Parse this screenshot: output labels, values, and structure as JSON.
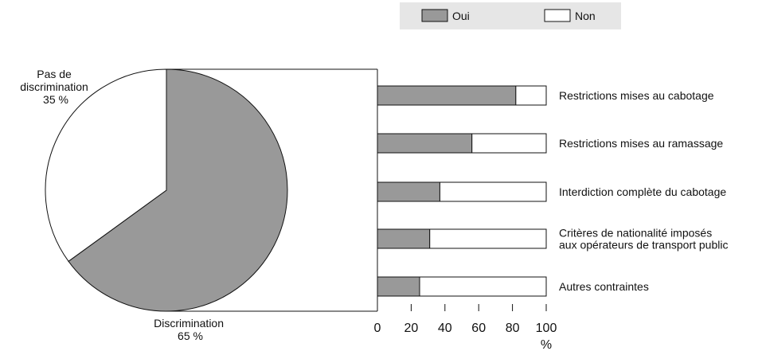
{
  "colors": {
    "oui": "#999999",
    "non": "#ffffff",
    "stroke": "#111111",
    "legend_bg": "#e6e6e6"
  },
  "legend": {
    "items": [
      "Oui",
      "Non"
    ]
  },
  "pie": {
    "slices": [
      {
        "label_lines": [
          "Discrimination",
          "65 %"
        ],
        "value": 65
      },
      {
        "label_lines": [
          "Pas de",
          "discrimination",
          "35 %"
        ],
        "value": 35
      }
    ]
  },
  "chart_data": [
    {
      "type": "pie",
      "categories": [
        "Discrimination",
        "Pas de discrimination"
      ],
      "values": [
        65,
        35
      ]
    },
    {
      "type": "bar",
      "orientation": "horizontal",
      "stacked": true,
      "categories": [
        [
          "Restrictions mises au cabotage"
        ],
        [
          "Restrictions mises au ramassage"
        ],
        [
          "Interdiction complète du cabotage"
        ],
        [
          "Critères de nationalité imposés",
          "aux opérateurs de transport public"
        ],
        [
          "Autres contraintes"
        ]
      ],
      "series": [
        {
          "name": "Oui",
          "values": [
            82,
            56,
            37,
            31,
            25
          ]
        },
        {
          "name": "Non",
          "values": [
            18,
            44,
            63,
            69,
            75
          ]
        }
      ],
      "xlim": [
        0,
        100
      ],
      "xticks": [
        0,
        20,
        40,
        60,
        80,
        100
      ],
      "xlabel": "%",
      "legend": "top"
    }
  ]
}
